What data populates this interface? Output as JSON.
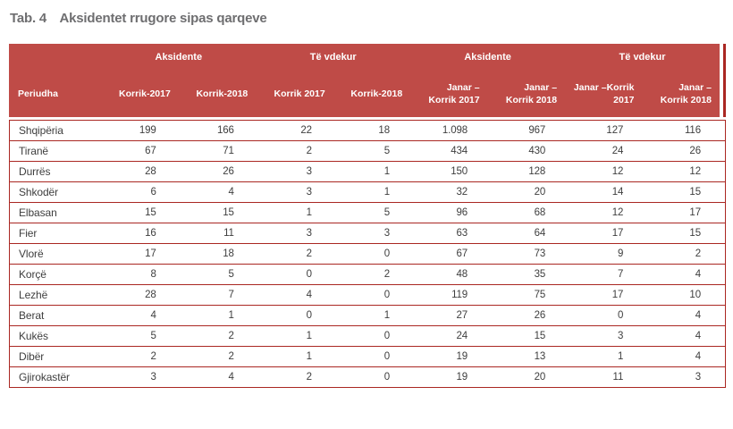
{
  "title": {
    "label": "Tab. 4",
    "text": "Aksidentet rrugore sipas qarqeve"
  },
  "colors": {
    "header_background": "#BF4B47",
    "line_red": "#AA2722",
    "header_text": "#FFFFFF",
    "body_text": "#3E3E3E",
    "title_text": "#6E6E70"
  },
  "table": {
    "group_headers": [
      {
        "label": ""
      },
      {
        "label": "Aksidente"
      },
      {
        "label": "Të vdekur"
      },
      {
        "label": "Aksidente"
      },
      {
        "label": "Të vdekur"
      }
    ],
    "columns": [
      "Periudha",
      "Korrik-2017",
      "Korrik-2018",
      "Korrik 2017",
      "Korrik-2018",
      "Janar –\nKorrik  2017",
      "Janar –\nKorrik 2018",
      "Janar –Korrik\n2017",
      "Janar –\nKorrik 2018"
    ],
    "rows": [
      {
        "name": "Shqipëria",
        "values": [
          "199",
          "166",
          "22",
          "18",
          "1.098",
          "967",
          "127",
          "116"
        ]
      },
      {
        "name": "Tiranë",
        "values": [
          "67",
          "71",
          "2",
          "5",
          "434",
          "430",
          "24",
          "26"
        ]
      },
      {
        "name": "Durrës",
        "values": [
          "28",
          "26",
          "3",
          "1",
          "150",
          "128",
          "12",
          "12"
        ]
      },
      {
        "name": "Shkodër",
        "values": [
          "6",
          "4",
          "3",
          "1",
          "32",
          "20",
          "14",
          "15"
        ]
      },
      {
        "name": "Elbasan",
        "values": [
          "15",
          "15",
          "1",
          "5",
          "96",
          "68",
          "12",
          "17"
        ]
      },
      {
        "name": "Fier",
        "values": [
          "16",
          "11",
          "3",
          "3",
          "63",
          "64",
          "17",
          "15"
        ]
      },
      {
        "name": "Vlorë",
        "values": [
          "17",
          "18",
          "2",
          "0",
          "67",
          "73",
          "9",
          "2"
        ]
      },
      {
        "name": "Korçë",
        "values": [
          "8",
          "5",
          "0",
          "2",
          "48",
          "35",
          "7",
          "4"
        ]
      },
      {
        "name": "Lezhë",
        "values": [
          "28",
          "7",
          "4",
          "0",
          "119",
          "75",
          "17",
          "10"
        ]
      },
      {
        "name": "Berat",
        "values": [
          "4",
          "1",
          "0",
          "1",
          "27",
          "26",
          "0",
          "4"
        ]
      },
      {
        "name": "Kukës",
        "values": [
          "5",
          "2",
          "1",
          "0",
          "24",
          "15",
          "3",
          "4"
        ]
      },
      {
        "name": "Dibër",
        "values": [
          "2",
          "2",
          "1",
          "0",
          "19",
          "13",
          "1",
          "4"
        ]
      },
      {
        "name": "Gjirokastër",
        "values": [
          "3",
          "4",
          "2",
          "0",
          "19",
          "20",
          "11",
          "3"
        ]
      }
    ]
  }
}
